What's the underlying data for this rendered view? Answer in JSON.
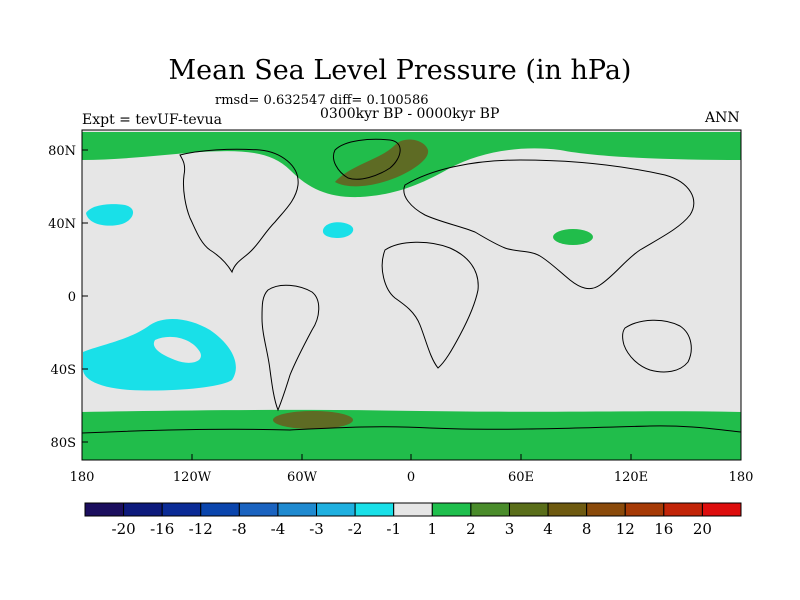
{
  "title": "Mean Sea Level Pressure (in hPa)",
  "stats": "rmsd= 0.632547 diff= 0.100586",
  "period": "0300kyr BP - 0000kyr BP",
  "experiment": "Expt = tevUF-tevua",
  "season": "ANN",
  "map": {
    "lon_ticks": [
      "180",
      "120W",
      "60W",
      "0",
      "60E",
      "120E",
      "180"
    ],
    "lat_ticks": [
      "80N",
      "40N",
      "0",
      "40S",
      "80S"
    ]
  },
  "colorbar": {
    "labels": [
      "-20",
      "-16",
      "-12",
      "-8",
      "-4",
      "-3",
      "-2",
      "-1",
      "1",
      "2",
      "3",
      "4",
      "8",
      "12",
      "16",
      "20"
    ],
    "colors": [
      "#1b0e5e",
      "#0d1a7c",
      "#0a2b96",
      "#0a45ad",
      "#1a63c0",
      "#1f8ad0",
      "#1fb0e0",
      "#19e0e8",
      "#e6e6e6",
      "#1fbf4d",
      "#4a8c2b",
      "#5a6e1a",
      "#6e5a10",
      "#8a4a0a",
      "#a63a06",
      "#c22408",
      "#dd0d0d"
    ]
  },
  "field_colors": {
    "background": "#e6e6e6",
    "positive_1_2": "#21bd4b",
    "positive_3_4": "#5e6b24",
    "negative_1_2": "#19e0e8"
  }
}
